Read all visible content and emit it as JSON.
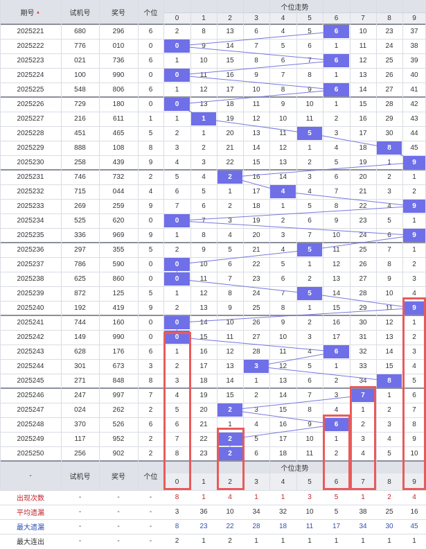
{
  "header": {
    "issue": "期号",
    "trial": "试机号",
    "prize": "奖号",
    "digit": "个位",
    "trend": "个位走势",
    "sort_icon": "sort-up-down-icon",
    "trend_numbers": [
      "0",
      "1",
      "2",
      "3",
      "4",
      "5",
      "6",
      "7",
      "8",
      "9"
    ]
  },
  "rows": [
    {
      "issue": "2025221",
      "trial": "680",
      "prize": "296",
      "digit": "6",
      "trend": [
        "2",
        "8",
        "13",
        "6",
        "4",
        "5",
        "6",
        "10",
        "23",
        "37"
      ]
    },
    {
      "issue": "2025222",
      "trial": "776",
      "prize": "010",
      "digit": "0",
      "trend": [
        "0",
        "9",
        "14",
        "7",
        "5",
        "6",
        "1",
        "11",
        "24",
        "38"
      ]
    },
    {
      "issue": "2025223",
      "trial": "021",
      "prize": "736",
      "digit": "6",
      "trend": [
        "1",
        "10",
        "15",
        "8",
        "6",
        "7",
        "6",
        "12",
        "25",
        "39"
      ]
    },
    {
      "issue": "2025224",
      "trial": "100",
      "prize": "990",
      "digit": "0",
      "trend": [
        "0",
        "11",
        "16",
        "9",
        "7",
        "8",
        "1",
        "13",
        "26",
        "40"
      ]
    },
    {
      "issue": "2025225",
      "trial": "548",
      "prize": "806",
      "digit": "6",
      "trend": [
        "1",
        "12",
        "17",
        "10",
        "8",
        "9",
        "6",
        "14",
        "27",
        "41"
      ]
    },
    {
      "issue": "2025226",
      "trial": "729",
      "prize": "180",
      "digit": "0",
      "trend": [
        "0",
        "13",
        "18",
        "11",
        "9",
        "10",
        "1",
        "15",
        "28",
        "42"
      ]
    },
    {
      "issue": "2025227",
      "trial": "216",
      "prize": "611",
      "digit": "1",
      "trend": [
        "1",
        "1",
        "19",
        "12",
        "10",
        "11",
        "2",
        "16",
        "29",
        "43"
      ]
    },
    {
      "issue": "2025228",
      "trial": "451",
      "prize": "465",
      "digit": "5",
      "trend": [
        "2",
        "1",
        "20",
        "13",
        "11",
        "5",
        "3",
        "17",
        "30",
        "44"
      ]
    },
    {
      "issue": "2025229",
      "trial": "888",
      "prize": "108",
      "digit": "8",
      "trend": [
        "3",
        "2",
        "21",
        "14",
        "12",
        "1",
        "4",
        "18",
        "8",
        "45"
      ]
    },
    {
      "issue": "2025230",
      "trial": "258",
      "prize": "439",
      "digit": "9",
      "trend": [
        "4",
        "3",
        "22",
        "15",
        "13",
        "2",
        "5",
        "19",
        "1",
        "9"
      ]
    },
    {
      "issue": "2025231",
      "trial": "746",
      "prize": "732",
      "digit": "2",
      "trend": [
        "5",
        "4",
        "2",
        "16",
        "14",
        "3",
        "6",
        "20",
        "2",
        "1"
      ]
    },
    {
      "issue": "2025232",
      "trial": "715",
      "prize": "044",
      "digit": "4",
      "trend": [
        "6",
        "5",
        "1",
        "17",
        "4",
        "4",
        "7",
        "21",
        "3",
        "2"
      ]
    },
    {
      "issue": "2025233",
      "trial": "269",
      "prize": "259",
      "digit": "9",
      "trend": [
        "7",
        "6",
        "2",
        "18",
        "1",
        "5",
        "8",
        "22",
        "4",
        "9"
      ]
    },
    {
      "issue": "2025234",
      "trial": "525",
      "prize": "620",
      "digit": "0",
      "trend": [
        "0",
        "7",
        "3",
        "19",
        "2",
        "6",
        "9",
        "23",
        "5",
        "1"
      ]
    },
    {
      "issue": "2025235",
      "trial": "336",
      "prize": "969",
      "digit": "9",
      "trend": [
        "1",
        "8",
        "4",
        "20",
        "3",
        "7",
        "10",
        "24",
        "6",
        "9"
      ]
    },
    {
      "issue": "2025236",
      "trial": "297",
      "prize": "355",
      "digit": "5",
      "trend": [
        "2",
        "9",
        "5",
        "21",
        "4",
        "5",
        "11",
        "25",
        "7",
        "1"
      ]
    },
    {
      "issue": "2025237",
      "trial": "786",
      "prize": "590",
      "digit": "0",
      "trend": [
        "0",
        "10",
        "6",
        "22",
        "5",
        "1",
        "12",
        "26",
        "8",
        "2"
      ]
    },
    {
      "issue": "2025238",
      "trial": "625",
      "prize": "860",
      "digit": "0",
      "trend": [
        "0",
        "11",
        "7",
        "23",
        "6",
        "2",
        "13",
        "27",
        "9",
        "3"
      ]
    },
    {
      "issue": "2025239",
      "trial": "872",
      "prize": "125",
      "digit": "5",
      "trend": [
        "1",
        "12",
        "8",
        "24",
        "7",
        "5",
        "14",
        "28",
        "10",
        "4"
      ]
    },
    {
      "issue": "2025240",
      "trial": "192",
      "prize": "419",
      "digit": "9",
      "trend": [
        "2",
        "13",
        "9",
        "25",
        "8",
        "1",
        "15",
        "29",
        "11",
        "9"
      ]
    },
    {
      "issue": "2025241",
      "trial": "744",
      "prize": "160",
      "digit": "0",
      "trend": [
        "0",
        "14",
        "10",
        "26",
        "9",
        "2",
        "16",
        "30",
        "12",
        "1"
      ]
    },
    {
      "issue": "2025242",
      "trial": "149",
      "prize": "990",
      "digit": "0",
      "trend": [
        "0",
        "15",
        "11",
        "27",
        "10",
        "3",
        "17",
        "31",
        "13",
        "2"
      ]
    },
    {
      "issue": "2025243",
      "trial": "628",
      "prize": "176",
      "digit": "6",
      "trend": [
        "1",
        "16",
        "12",
        "28",
        "11",
        "4",
        "6",
        "32",
        "14",
        "3"
      ]
    },
    {
      "issue": "2025244",
      "trial": "301",
      "prize": "673",
      "digit": "3",
      "trend": [
        "2",
        "17",
        "13",
        "3",
        "12",
        "5",
        "1",
        "33",
        "15",
        "4"
      ]
    },
    {
      "issue": "2025245",
      "trial": "271",
      "prize": "848",
      "digit": "8",
      "trend": [
        "3",
        "18",
        "14",
        "1",
        "13",
        "6",
        "2",
        "34",
        "8",
        "5"
      ]
    },
    {
      "issue": "2025246",
      "trial": "247",
      "prize": "997",
      "digit": "7",
      "trend": [
        "4",
        "19",
        "15",
        "2",
        "14",
        "7",
        "3",
        "7",
        "1",
        "6"
      ]
    },
    {
      "issue": "2025247",
      "trial": "024",
      "prize": "262",
      "digit": "2",
      "trend": [
        "5",
        "20",
        "2",
        "3",
        "15",
        "8",
        "4",
        "1",
        "2",
        "7"
      ]
    },
    {
      "issue": "2025248",
      "trial": "370",
      "prize": "526",
      "digit": "6",
      "trend": [
        "6",
        "21",
        "1",
        "4",
        "16",
        "9",
        "6",
        "2",
        "3",
        "8"
      ]
    },
    {
      "issue": "2025249",
      "trial": "117",
      "prize": "952",
      "digit": "2",
      "trend": [
        "7",
        "22",
        "2",
        "5",
        "17",
        "10",
        "1",
        "3",
        "4",
        "9"
      ]
    },
    {
      "issue": "2025250",
      "trial": "256",
      "prize": "902",
      "digit": "2",
      "trend": [
        "8",
        "23",
        "2",
        "6",
        "18",
        "11",
        "2",
        "4",
        "5",
        "10"
      ]
    }
  ],
  "footer_header": {
    "issue": "-",
    "trial": "试机号",
    "prize": "奖号",
    "digit": "个位",
    "trend": "个位走势"
  },
  "stats": [
    {
      "label": "出现次数",
      "cols": [
        "-",
        "-",
        "-"
      ],
      "values": [
        "8",
        "1",
        "4",
        "1",
        "1",
        "3",
        "5",
        "1",
        "2",
        "4"
      ]
    },
    {
      "label": "平均遗漏",
      "cols": [
        "-",
        "-",
        "-"
      ],
      "values": [
        "3",
        "36",
        "10",
        "34",
        "32",
        "10",
        "5",
        "38",
        "25",
        "16"
      ]
    },
    {
      "label": "最大遗漏",
      "cols": [
        "-",
        "-",
        "-"
      ],
      "values": [
        "8",
        "23",
        "22",
        "28",
        "18",
        "11",
        "17",
        "34",
        "30",
        "45"
      ]
    },
    {
      "label": "最大连出",
      "cols": [
        "-",
        "-",
        "-"
      ],
      "values": [
        "2",
        "1",
        "2",
        "1",
        "1",
        "1",
        "1",
        "1",
        "1",
        "1"
      ]
    }
  ],
  "colors": {
    "ball": "#6f6fe8",
    "line": "#7777dd",
    "highlight_box": "#ea5a5a",
    "stat_red": "#c0262d",
    "stat_blue": "#2f4fb3"
  }
}
